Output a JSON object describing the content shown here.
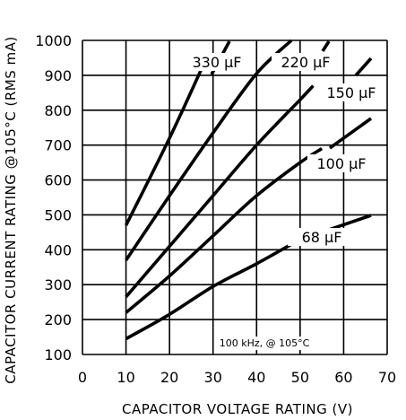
{
  "chart_data": {
    "type": "line",
    "xlabel": "CAPACITOR VOLTAGE RATING (V)",
    "ylabel": "CAPACITOR CURRENT RATING @105°C (RMS mA)",
    "xlim": [
      0,
      70
    ],
    "ylim": [
      100,
      1000
    ],
    "xticks": [
      "0",
      "10",
      "20",
      "30",
      "40",
      "50",
      "60",
      "70"
    ],
    "yticks": [
      "100",
      "200",
      "300",
      "400",
      "500",
      "600",
      "700",
      "800",
      "900",
      "1000"
    ],
    "grid": true,
    "annotation": "100 kHz, @ 105°C",
    "series": [
      {
        "name": "330 µF",
        "x": [
          10,
          20,
          28.5
        ],
        "y": [
          470,
          720,
          950
        ]
      },
      {
        "name": "220 µF",
        "x": [
          10,
          20,
          30,
          40,
          48
        ],
        "y": [
          370,
          555,
          735,
          905,
          1000
        ]
      },
      {
        "name": "150 µF",
        "x": [
          10,
          20,
          30,
          40,
          50,
          53
        ],
        "y": [
          265,
          410,
          555,
          700,
          830,
          870
        ]
      },
      {
        "name": "100 µF",
        "x": [
          10,
          20,
          30,
          40,
          50,
          55
        ],
        "y": [
          220,
          325,
          440,
          555,
          650,
          690
        ]
      },
      {
        "name": "68 µF",
        "x": [
          10,
          20,
          30,
          40,
          50
        ],
        "y": [
          145,
          215,
          295,
          360,
          430
        ]
      }
    ]
  }
}
